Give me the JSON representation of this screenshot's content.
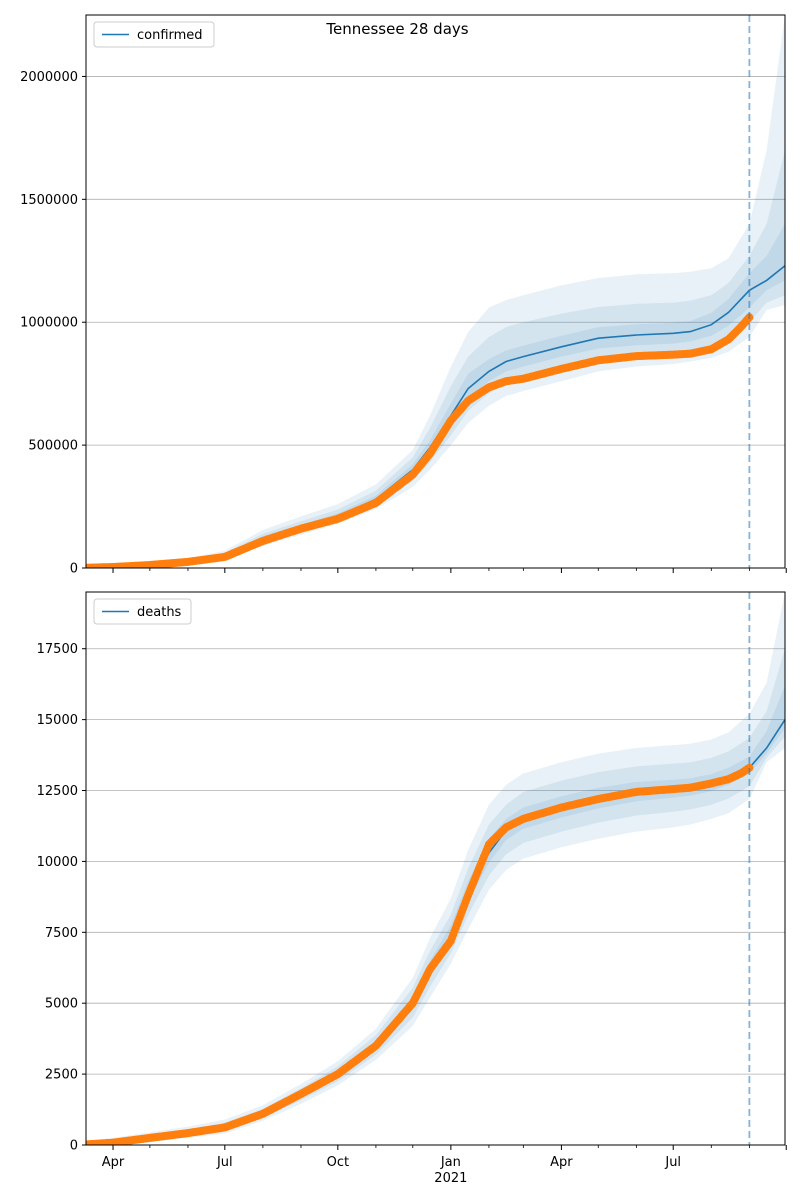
{
  "figure": {
    "title": "Tennessee 28 days"
  },
  "colors": {
    "forecast_line": "#1f77b4",
    "band_fill": "#1f77b4",
    "observed_points": "#ff7f0e",
    "cutoff_line": "#1f77b4",
    "grid": "#b0b0b0"
  },
  "chart_data": [
    {
      "type": "line",
      "legend": {
        "label": "confirmed",
        "location": "top-left"
      },
      "grid": "horizontal",
      "ylim": [
        0,
        2250000
      ],
      "yticks": [
        0,
        500000,
        1000000,
        1500000,
        2000000
      ],
      "ytick_labels": [
        "0",
        "500000",
        "1000000",
        "1500000",
        "2000000"
      ],
      "xlim": [
        "2020-03-10",
        "2021-09-30"
      ],
      "x_major_ticks": [
        "2020-04-01",
        "2020-07-01",
        "2020-10-01",
        "2021-01-01",
        "2021-04-01",
        "2021-07-01",
        "2021-10-01"
      ],
      "x_minor_ticks": [
        "2020-05-01",
        "2020-06-01",
        "2020-08-01",
        "2020-09-01",
        "2020-11-01",
        "2020-12-01",
        "2021-02-01",
        "2021-03-01",
        "2021-05-01",
        "2021-06-01",
        "2021-08-01",
        "2021-09-01"
      ],
      "forecast_start": "2021-09-01",
      "forecast": {
        "name": "confirmed",
        "x": [
          "2020-03-10",
          "2020-04-01",
          "2020-05-01",
          "2020-06-01",
          "2020-07-01",
          "2020-08-01",
          "2020-09-01",
          "2020-10-01",
          "2020-11-01",
          "2020-12-01",
          "2020-12-15",
          "2021-01-01",
          "2021-01-15",
          "2021-02-01",
          "2021-02-15",
          "2021-03-01",
          "2021-04-01",
          "2021-05-01",
          "2021-06-01",
          "2021-07-01",
          "2021-07-15",
          "2021-08-01",
          "2021-08-15",
          "2021-09-01",
          "2021-09-15",
          "2021-09-30"
        ],
        "y": [
          3000,
          5000,
          12000,
          25000,
          50000,
          120000,
          165000,
          210000,
          280000,
          400000,
          490000,
          620000,
          730000,
          800000,
          840000,
          860000,
          900000,
          935000,
          948000,
          955000,
          962000,
          990000,
          1040000,
          1130000,
          1170000,
          1230000
        ],
        "bands": [
          {
            "lower": [
              0,
              1000,
              6000,
              15000,
              35000,
              90000,
              135000,
              180000,
              240000,
              330000,
              400000,
              500000,
              590000,
              660000,
              700000,
              720000,
              760000,
              800000,
              820000,
              830000,
              840000,
              855000,
              880000,
              940000,
              1050000,
              1070000
            ],
            "upper": [
              10000,
              15000,
              22000,
              40000,
              70000,
              155000,
              210000,
              260000,
              340000,
              480000,
              620000,
              820000,
              960000,
              1060000,
              1090000,
              1110000,
              1150000,
              1180000,
              1195000,
              1200000,
              1205000,
              1220000,
              1260000,
              1400000,
              1700000,
              2250000
            ]
          },
          {
            "lower": [
              0,
              2000,
              8000,
              19000,
              40000,
              100000,
              145000,
              190000,
              255000,
              355000,
              430000,
              540000,
              640000,
              710000,
              750000,
              770000,
              810000,
              845000,
              860000,
              870000,
              878000,
              895000,
              930000,
              1000000,
              1080000,
              1110000
            ],
            "upper": [
              7000,
              11000,
              18000,
              33000,
              62000,
              140000,
              190000,
              238000,
              315000,
              450000,
              570000,
              740000,
              860000,
              940000,
              980000,
              1000000,
              1035000,
              1062000,
              1075000,
              1080000,
              1088000,
              1110000,
              1160000,
              1270000,
              1400000,
              1700000
            ]
          },
          {
            "lower": [
              1000,
              3000,
              10000,
              22000,
              45000,
              110000,
              155000,
              200000,
              268000,
              380000,
              465000,
              585000,
              690000,
              760000,
              800000,
              820000,
              860000,
              893000,
              906000,
              913000,
              922000,
              945000,
              985000,
              1060000,
              1130000,
              1170000
            ],
            "upper": [
              5000,
              8000,
              15000,
              28000,
              56000,
              130000,
              176000,
              222000,
              295000,
              422000,
              520000,
              670000,
              790000,
              850000,
              885000,
              905000,
              945000,
              980000,
              992000,
              998000,
              1005000,
              1038000,
              1095000,
              1200000,
              1270000,
              1400000
            ]
          }
        ]
      },
      "observed": {
        "name": "observed confirmed",
        "x": [
          "2020-03-10",
          "2020-04-01",
          "2020-05-01",
          "2020-06-01",
          "2020-07-01",
          "2020-08-01",
          "2020-09-01",
          "2020-10-01",
          "2020-11-01",
          "2020-12-01",
          "2020-12-15",
          "2021-01-01",
          "2021-01-15",
          "2021-02-01",
          "2021-02-15",
          "2021-03-01",
          "2021-04-01",
          "2021-05-01",
          "2021-06-01",
          "2021-07-01",
          "2021-07-15",
          "2021-08-01",
          "2021-08-15",
          "2021-08-25",
          "2021-09-01"
        ],
        "y": [
          1000,
          4000,
          12000,
          25000,
          45000,
          110000,
          160000,
          200000,
          265000,
          380000,
          465000,
          600000,
          680000,
          735000,
          760000,
          770000,
          810000,
          845000,
          862000,
          868000,
          872000,
          890000,
          930000,
          980000,
          1020000
        ]
      }
    },
    {
      "type": "line",
      "legend": {
        "label": "deaths",
        "location": "top-left"
      },
      "grid": "horizontal",
      "ylim": [
        0,
        19500
      ],
      "yticks": [
        0,
        2500,
        5000,
        7500,
        10000,
        12500,
        15000,
        17500
      ],
      "ytick_labels": [
        "0",
        "2500",
        "5000",
        "7500",
        "10000",
        "12500",
        "15000",
        "17500"
      ],
      "xlim": [
        "2020-03-10",
        "2021-09-30"
      ],
      "x_major_ticks": [
        "2020-04-01",
        "2020-07-01",
        "2020-10-01",
        "2021-01-01",
        "2021-04-01",
        "2021-07-01",
        "2021-10-01"
      ],
      "x_tick_labels": [
        "Apr",
        "Jul",
        "Oct",
        "Jan",
        "Apr",
        "Jul",
        ""
      ],
      "x_minor_ticks": [
        "2020-05-01",
        "2020-06-01",
        "2020-08-01",
        "2020-09-01",
        "2020-11-01",
        "2020-12-01",
        "2021-02-01",
        "2021-03-01",
        "2021-05-01",
        "2021-06-01",
        "2021-08-01",
        "2021-09-01"
      ],
      "x_year_label": "2021",
      "forecast_start": "2021-09-01",
      "forecast": {
        "name": "deaths",
        "x": [
          "2020-03-10",
          "2020-04-01",
          "2020-05-01",
          "2020-06-01",
          "2020-07-01",
          "2020-08-01",
          "2020-09-01",
          "2020-10-01",
          "2020-11-01",
          "2020-12-01",
          "2020-12-15",
          "2021-01-01",
          "2021-01-15",
          "2021-02-01",
          "2021-02-15",
          "2021-03-01",
          "2021-04-01",
          "2021-05-01",
          "2021-06-01",
          "2021-07-01",
          "2021-07-15",
          "2021-08-01",
          "2021-08-15",
          "2021-09-01",
          "2021-09-15",
          "2021-09-30"
        ],
        "y": [
          20,
          80,
          250,
          420,
          620,
          1100,
          1800,
          2500,
          3500,
          5000,
          6200,
          7300,
          8800,
          10300,
          11100,
          11500,
          11900,
          12200,
          12450,
          12550,
          12600,
          12750,
          12950,
          13300,
          14000,
          15000
        ],
        "bands": [
          {
            "lower": [
              0,
              0,
              100,
              250,
              400,
              850,
              1450,
              2100,
              3000,
              4200,
              5200,
              6400,
              7600,
              9000,
              9700,
              10100,
              10500,
              10800,
              11050,
              11200,
              11300,
              11500,
              11700,
              12200,
              13500,
              14000
            ],
            "upper": [
              150,
              250,
              450,
              650,
              900,
              1400,
              2150,
              2950,
              4100,
              5900,
              7300,
              8700,
              10400,
              12000,
              12700,
              13100,
              13500,
              13800,
              14000,
              14100,
              14150,
              14300,
              14550,
              15200,
              16300,
              19500
            ]
          },
          {
            "lower": [
              0,
              20,
              150,
              310,
              480,
              950,
              1580,
              2250,
              3180,
              4500,
              5580,
              6770,
              8100,
              9500,
              10250,
              10650,
              11050,
              11370,
              11620,
              11750,
              11830,
              12000,
              12220,
              12650,
              13650,
              14400
            ],
            "upper": [
              100,
              180,
              370,
              560,
              790,
              1280,
              2000,
              2780,
              3880,
              5550,
              6850,
              8130,
              9750,
              11300,
              12000,
              12450,
              12850,
              13150,
              13350,
              13450,
              13500,
              13650,
              13880,
              14350,
              15300,
              17500
            ]
          },
          {
            "lower": [
              0,
              50,
              200,
              370,
              560,
              1030,
              1700,
              2400,
              3350,
              4780,
              5920,
              7100,
              8550,
              9950,
              10750,
              11150,
              11550,
              11870,
              12120,
              12250,
              12320,
              12480,
              12700,
              13100,
              13800,
              14700
            ],
            "upper": [
              50,
              120,
              310,
              490,
              700,
              1180,
              1900,
              2630,
              3680,
              5250,
              6500,
              7750,
              9300,
              10800,
              11500,
              11900,
              12300,
              12600,
              12800,
              12880,
              12930,
              13080,
              13300,
              13700,
              14600,
              16200
            ]
          }
        ]
      },
      "observed": {
        "name": "observed deaths",
        "x": [
          "2020-03-10",
          "2020-04-01",
          "2020-05-01",
          "2020-06-01",
          "2020-07-01",
          "2020-08-01",
          "2020-09-01",
          "2020-10-01",
          "2020-11-01",
          "2020-12-01",
          "2020-12-15",
          "2021-01-01",
          "2021-01-15",
          "2021-02-01",
          "2021-02-15",
          "2021-03-01",
          "2021-04-01",
          "2021-05-01",
          "2021-06-01",
          "2021-07-01",
          "2021-07-15",
          "2021-08-01",
          "2021-08-15",
          "2021-08-25",
          "2021-09-01"
        ],
        "y": [
          20,
          80,
          250,
          420,
          620,
          1100,
          1800,
          2500,
          3500,
          5000,
          6200,
          7200,
          8800,
          10600,
          11200,
          11500,
          11900,
          12200,
          12450,
          12550,
          12600,
          12750,
          12900,
          13100,
          13300
        ]
      }
    }
  ]
}
